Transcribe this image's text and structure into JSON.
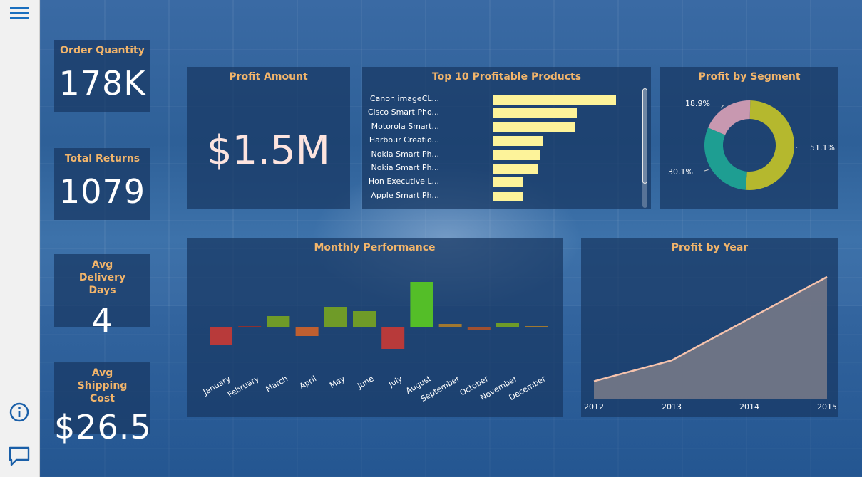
{
  "sidebar": {
    "menu_icon": "hamburger-menu-icon",
    "info_icon": "info-icon",
    "comment_icon": "comment-icon"
  },
  "kpis": [
    {
      "title": "Order Quantity",
      "value": "178K"
    },
    {
      "title": "Total Returns",
      "value": "1079"
    },
    {
      "title": "Avg Delivery Days",
      "value": "4"
    },
    {
      "title": "Avg Shipping Cost",
      "value": "$26.5"
    }
  ],
  "profit_amount": {
    "title": "Profit Amount",
    "value": "$1.5M"
  },
  "top_products": {
    "title": "Top 10 Profitable Products"
  },
  "segment": {
    "title": "Profit by Segment"
  },
  "monthly": {
    "title": "Monthly Performance"
  },
  "yearly": {
    "title": "Profit by Year"
  },
  "colors": {
    "accent_title": "#f2b56b",
    "bar_yellow": "#fdf39a",
    "segment": [
      "#b5b82e",
      "#1e9e92",
      "#c898b0"
    ],
    "line": "#f6c3ad",
    "area": "#7a7b88"
  },
  "chart_data": [
    {
      "type": "bar",
      "orientation": "horizontal",
      "title": "Top 10 Profitable Products",
      "categories": [
        "Canon imageCL...",
        "Cisco Smart Pho...",
        "Motorola Smart...",
        "Harbour Creatio...",
        "Nokia Smart Ph...",
        "Nokia Smart Ph...",
        "Hon Executive L...",
        "Apple Smart Ph..."
      ],
      "values": [
        100,
        68,
        67,
        41,
        39,
        37,
        24,
        24
      ]
    },
    {
      "type": "pie",
      "title": "Profit by Segment",
      "labels": [
        "51.1%",
        "30.1%",
        "18.9%"
      ],
      "values": [
        51.1,
        30.1,
        18.9
      ]
    },
    {
      "type": "bar",
      "title": "Monthly Performance",
      "categories": [
        "January",
        "February",
        "March",
        "April",
        "May",
        "June",
        "July",
        "August",
        "September",
        "October",
        "November",
        "December"
      ],
      "values": [
        -25,
        1,
        16,
        -12,
        29,
        23,
        -30,
        64,
        5,
        -3,
        6,
        2
      ],
      "colors": [
        "#b83a3a",
        "#8c3030",
        "#6f9b28",
        "#bf5f30",
        "#6f9b28",
        "#6f9b28",
        "#b83a3a",
        "#54be28",
        "#a07830",
        "#a05030",
        "#6f9b28",
        "#a07830"
      ]
    },
    {
      "type": "area",
      "title": "Profit by Year",
      "x": [
        "2012",
        "2013",
        "2014",
        "2015"
      ],
      "values": [
        25,
        55,
        115,
        175
      ]
    }
  ]
}
